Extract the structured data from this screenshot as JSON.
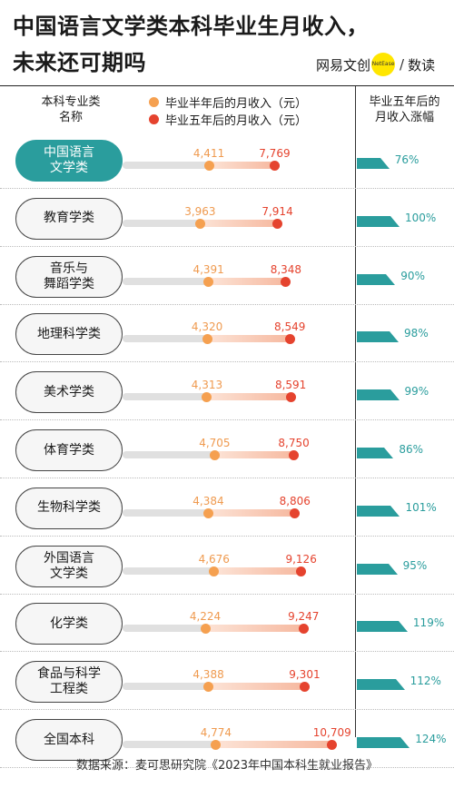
{
  "header": {
    "title_line1": "中国语言文学类本科毕业生月收入，",
    "title_line2": "未来还可期吗",
    "brand_left": "网易文创",
    "brand_badge": "NetEase",
    "brand_sep": "/",
    "brand_right": "数读"
  },
  "columns": {
    "category": "本科专业类\n名称",
    "growth": "毕业五年后的\n月收入涨幅"
  },
  "legend": {
    "half_year": "毕业半年后的月收入（元）",
    "five_year": "毕业五年后的月收入（元）"
  },
  "colors": {
    "teal": "#2a9d9d",
    "orange": "#f5a050",
    "red": "#e5432e"
  },
  "chart_data": {
    "type": "bar",
    "categories": [
      "中国语言\n文学类",
      "教育学类",
      "音乐与\n舞蹈学类",
      "地理科学类",
      "美术学类",
      "体育学类",
      "生物科学类",
      "外国语言\n文学类",
      "化学类",
      "食品与科学\n工程类",
      "全国本科"
    ],
    "series": [
      {
        "name": "毕业半年后的月收入（元）",
        "values": [
          4411,
          3963,
          4391,
          4320,
          4313,
          4705,
          4384,
          4676,
          4224,
          4388,
          4774
        ],
        "labels": [
          "4,411",
          "3,963",
          "4,391",
          "4,320",
          "4,313",
          "4,705",
          "4,384",
          "4,676",
          "4,224",
          "4,388",
          "4,774"
        ]
      },
      {
        "name": "毕业五年后的月收入（元）",
        "values": [
          7769,
          7914,
          8348,
          8549,
          8591,
          8750,
          8806,
          9126,
          9247,
          9301,
          10709
        ],
        "labels": [
          "7,769",
          "7,914",
          "8,348",
          "8,549",
          "8,591",
          "8,750",
          "8,806",
          "9,126",
          "9,247",
          "9,301",
          "10,709"
        ]
      },
      {
        "name": "毕业五年后的月收入涨幅",
        "values": [
          76,
          100,
          90,
          98,
          99,
          86,
          101,
          95,
          119,
          112,
          124
        ],
        "labels": [
          "76%",
          "100%",
          "90%",
          "98%",
          "99%",
          "86%",
          "101%",
          "95%",
          "119%",
          "112%",
          "124%"
        ]
      }
    ],
    "highlight": "中国语言\n文学类"
  },
  "footer": {
    "source": "数据来源：麦可思研究院《2023年中国本科生就业报告》"
  }
}
